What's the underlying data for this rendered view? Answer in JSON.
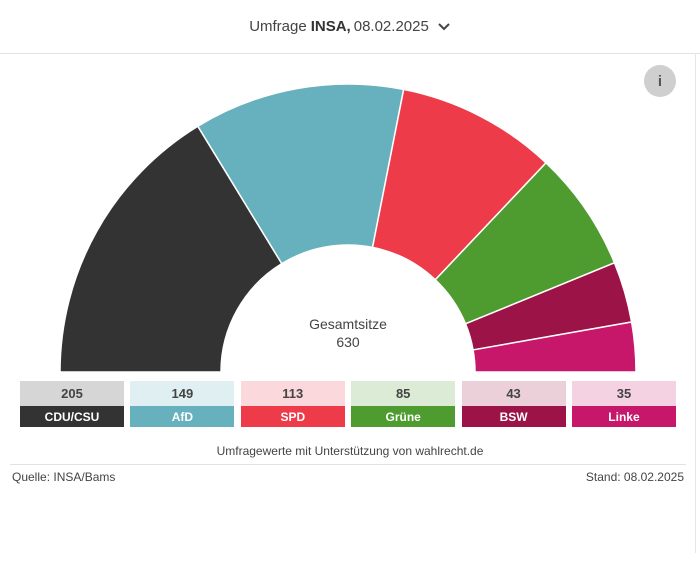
{
  "header": {
    "prefix": "Umfrage",
    "institute": "INSA,",
    "date": "08.02.2025"
  },
  "chart_data": {
    "type": "parliament-semicircle",
    "center_label": "Gesamtsitze",
    "total": 630,
    "parties": [
      {
        "name": "CDU/CSU",
        "seats": 205,
        "color": "#333333",
        "light": "#d6d6d6"
      },
      {
        "name": "AfD",
        "seats": 149,
        "color": "#67b1be",
        "light": "#e0f0f2"
      },
      {
        "name": "SPD",
        "seats": 113,
        "color": "#ed3b4a",
        "light": "#fbd8db"
      },
      {
        "name": "Grüne",
        "seats": 85,
        "color": "#4e9b2f",
        "light": "#dcebd5"
      },
      {
        "name": "BSW",
        "seats": 43,
        "color": "#9b1347",
        "light": "#ebd0da"
      },
      {
        "name": "Linke",
        "seats": 35,
        "color": "#c6176a",
        "light": "#f4d2e2"
      }
    ]
  },
  "note": "Umfragewerte mit Unterstützung von wahlrecht.de",
  "source": "Quelle: INSA/Bams",
  "stand": "Stand: 08.02.2025",
  "info_label": "i"
}
